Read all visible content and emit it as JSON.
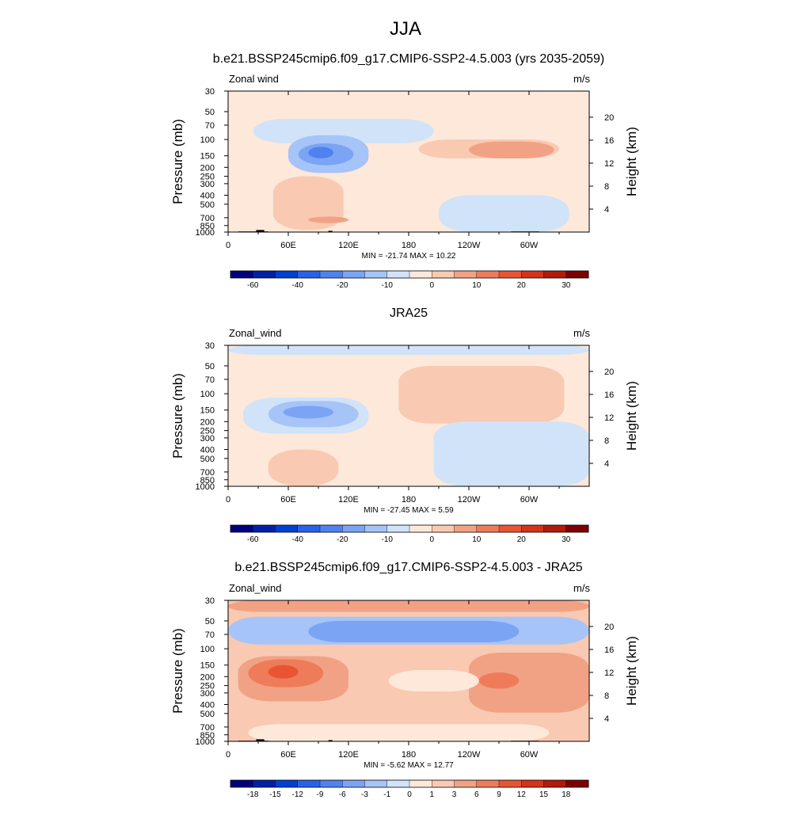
{
  "figure": {
    "title": "JJA",
    "colors": {
      "palette_blue_red": [
        "#00007f",
        "#0020a8",
        "#0040d0",
        "#2962ea",
        "#4f82f0",
        "#7ba4f4",
        "#a6c4f7",
        "#d0e3f9",
        "#fde8da",
        "#f9c9b2",
        "#f2a284",
        "#ee7c5a",
        "#e95532",
        "#d4341a",
        "#b21a0c",
        "#7f0000"
      ]
    }
  },
  "chart_data": [
    {
      "type": "contour",
      "panel_title": "b.e21.BSSP245cmip6.f09_g17.CMIP6-SSP2-4.5.003 (yrs 2035-2059)",
      "left_label": "Zonal wind",
      "right_label": "m/s",
      "ylabel": "Pressure (mb)",
      "y2label": "Height (km)",
      "x_ticks": [
        "0",
        "60E",
        "120E",
        "180",
        "120W",
        "60W"
      ],
      "x_tick_lon": [
        0,
        60,
        120,
        180,
        240,
        300
      ],
      "xlim": [
        0,
        360
      ],
      "y_ticks": [
        "30",
        "50",
        "70",
        "100",
        "150",
        "200",
        "250",
        "300",
        "400",
        "500",
        "700",
        "850",
        "1000"
      ],
      "y_tick_p": [
        30,
        50,
        70,
        100,
        150,
        200,
        250,
        300,
        400,
        500,
        700,
        850,
        1000
      ],
      "ylim": [
        1000,
        30
      ],
      "y_scale": "log",
      "height_ticks": [
        "20",
        "16",
        "12",
        "8",
        "4"
      ],
      "height_tick_km": [
        20,
        16,
        12,
        8,
        4
      ],
      "min_max": "MIN = -21.74  MAX =  10.22",
      "colorbar_labels": [
        "-60",
        "-40",
        "-20",
        "-10",
        "0",
        "10",
        "20",
        "30"
      ],
      "contour_levels": [
        -70,
        -60,
        -50,
        -40,
        -30,
        -20,
        -15,
        -10,
        -5,
        0,
        5,
        10,
        15,
        20,
        25,
        30
      ],
      "has_topography": true,
      "regions": [
        {
          "lon": 0,
          "p": 30,
          "w": 360,
          "h": 1000,
          "level": 8
        },
        {
          "lon": 25,
          "p": 60,
          "w": 180,
          "h": 50,
          "level": 7
        },
        {
          "lon": 60,
          "p": 90,
          "w": 80,
          "h": 140,
          "level": 6
        },
        {
          "lon": 70,
          "p": 110,
          "w": 55,
          "h": 80,
          "level": 5
        },
        {
          "lon": 80,
          "p": 120,
          "w": 25,
          "h": 40,
          "level": 4
        },
        {
          "lon": 190,
          "p": 100,
          "w": 140,
          "h": 60,
          "level": 9
        },
        {
          "lon": 240,
          "p": 105,
          "w": 85,
          "h": 55,
          "level": 10
        },
        {
          "lon": 210,
          "p": 400,
          "w": 130,
          "h": 600,
          "level": 7
        },
        {
          "lon": 45,
          "p": 250,
          "w": 70,
          "h": 700,
          "level": 9
        },
        {
          "lon": 80,
          "p": 680,
          "w": 40,
          "h": 120,
          "level": 10
        }
      ]
    },
    {
      "type": "contour",
      "panel_title": "JRA25",
      "left_label": "Zonal_wind",
      "right_label": "m/s",
      "ylabel": "Pressure (mb)",
      "y2label": "Height (km)",
      "x_ticks": [
        "0",
        "60E",
        "120E",
        "180",
        "120W",
        "60W"
      ],
      "x_tick_lon": [
        0,
        60,
        120,
        180,
        240,
        300
      ],
      "xlim": [
        0,
        360
      ],
      "y_ticks": [
        "30",
        "50",
        "70",
        "100",
        "150",
        "200",
        "250",
        "300",
        "400",
        "500",
        "700",
        "850",
        "1000"
      ],
      "y_tick_p": [
        30,
        50,
        70,
        100,
        150,
        200,
        250,
        300,
        400,
        500,
        700,
        850,
        1000
      ],
      "ylim": [
        1000,
        30
      ],
      "y_scale": "log",
      "height_ticks": [
        "20",
        "16",
        "12",
        "8",
        "4"
      ],
      "height_tick_km": [
        20,
        16,
        12,
        8,
        4
      ],
      "min_max": "MIN = -27.45  MAX =   5.59",
      "colorbar_labels": [
        "-60",
        "-40",
        "-20",
        "-10",
        "0",
        "10",
        "20",
        "30"
      ],
      "contour_levels": [
        -70,
        -60,
        -50,
        -40,
        -30,
        -20,
        -15,
        -10,
        -5,
        0,
        5,
        10,
        15,
        20,
        25,
        30
      ],
      "has_topography": false,
      "regions": [
        {
          "lon": 0,
          "p": 30,
          "w": 360,
          "h": 1000,
          "level": 8
        },
        {
          "lon": 0,
          "p": 30,
          "w": 360,
          "h": 8,
          "level": 7
        },
        {
          "lon": 15,
          "p": 110,
          "w": 125,
          "h": 160,
          "level": 7
        },
        {
          "lon": 40,
          "p": 120,
          "w": 90,
          "h": 110,
          "level": 6
        },
        {
          "lon": 55,
          "p": 135,
          "w": 50,
          "h": 50,
          "level": 5
        },
        {
          "lon": 170,
          "p": 50,
          "w": 165,
          "h": 160,
          "level": 9
        },
        {
          "lon": 205,
          "p": 200,
          "w": 155,
          "h": 800,
          "level": 7
        },
        {
          "lon": 40,
          "p": 400,
          "w": 70,
          "h": 600,
          "level": 9
        }
      ]
    },
    {
      "type": "contour",
      "panel_title": "b.e21.BSSP245cmip6.f09_g17.CMIP6-SSP2-4.5.003 - JRA25",
      "left_label": "Zonal_wind",
      "right_label": "m/s",
      "ylabel": "Pressure (mb)",
      "y2label": "Height (km)",
      "x_ticks": [
        "0",
        "60E",
        "120E",
        "180",
        "120W",
        "60W"
      ],
      "x_tick_lon": [
        0,
        60,
        120,
        180,
        240,
        300
      ],
      "xlim": [
        0,
        360
      ],
      "y_ticks": [
        "30",
        "50",
        "70",
        "100",
        "150",
        "200",
        "250",
        "300",
        "400",
        "500",
        "700",
        "850",
        "1000"
      ],
      "y_tick_p": [
        30,
        50,
        70,
        100,
        150,
        200,
        250,
        300,
        400,
        500,
        700,
        850,
        1000
      ],
      "ylim": [
        1000,
        30
      ],
      "y_scale": "log",
      "height_ticks": [
        "20",
        "16",
        "12",
        "8",
        "4"
      ],
      "height_tick_km": [
        20,
        16,
        12,
        8,
        4
      ],
      "min_max": "MIN =  -5.62  MAX =  12.77",
      "colorbar_labels": [
        "-18",
        "-15",
        "-12",
        "-9",
        "-6",
        "-3",
        "-1",
        "0",
        "1",
        "3",
        "6",
        "9",
        "12",
        "15",
        "18"
      ],
      "contour_levels": [
        -21,
        -18,
        -15,
        -12,
        -9,
        -6,
        -3,
        -1,
        0,
        1,
        3,
        6,
        9,
        12,
        15,
        18
      ],
      "has_topography": true,
      "regions": [
        {
          "lon": 0,
          "p": 30,
          "w": 360,
          "h": 1000,
          "level": 9
        },
        {
          "lon": 0,
          "p": 30,
          "w": 360,
          "h": 10,
          "level": 10
        },
        {
          "lon": 0,
          "p": 45,
          "w": 360,
          "h": 45,
          "level": 6
        },
        {
          "lon": 80,
          "p": 50,
          "w": 210,
          "h": 35,
          "level": 5
        },
        {
          "lon": 10,
          "p": 120,
          "w": 110,
          "h": 250,
          "level": 10
        },
        {
          "lon": 20,
          "p": 130,
          "w": 75,
          "h": 130,
          "level": 11
        },
        {
          "lon": 40,
          "p": 150,
          "w": 30,
          "h": 60,
          "level": 12
        },
        {
          "lon": 240,
          "p": 110,
          "w": 120,
          "h": 380,
          "level": 10
        },
        {
          "lon": 250,
          "p": 180,
          "w": 40,
          "h": 90,
          "level": 11
        },
        {
          "lon": 160,
          "p": 170,
          "w": 90,
          "h": 120,
          "level": 8
        },
        {
          "lon": 20,
          "p": 650,
          "w": 300,
          "h": 350,
          "level": 8
        }
      ]
    }
  ]
}
